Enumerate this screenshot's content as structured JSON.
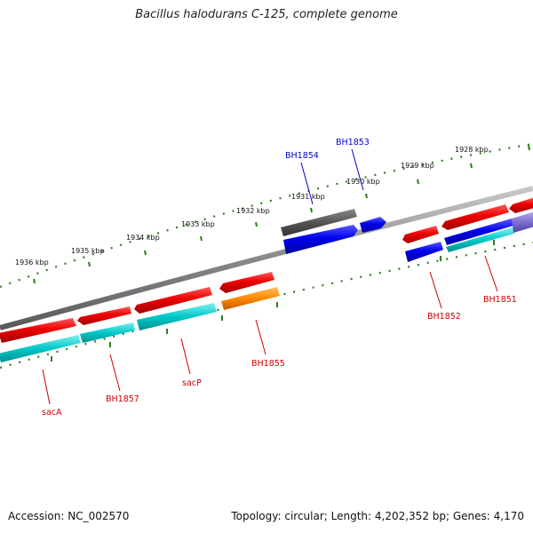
{
  "title": "Bacillus halodurans C-125, complete genome",
  "footer": {
    "accession": "Accession: NC_002570",
    "topology": "Topology: circular; Length: 4,202,352 bp; Genes: 4,170"
  },
  "colors": {
    "background": "#ffffff",
    "backbone": "#8a8a8a",
    "tick": "#2e7d1e",
    "label_red": "#cc0000",
    "label_blue": "#0000cc",
    "cds_red": "#ee0000",
    "cds_blue": "#0000ee",
    "cds_cyan": "#00c8c8",
    "cds_orange": "#ff8800",
    "cds_gray": "#555555",
    "cds_purple": "#7f6fd0"
  },
  "ticks": [
    "1936 kbp",
    "1935 kbp",
    "1934 kbp",
    "1933 kbp",
    "1932 kbp",
    "1931 kbp",
    "1930 kbp",
    "1929 kbp",
    "1928 kbp"
  ],
  "genes": [
    {
      "label": "sacA",
      "color": "#cc0000"
    },
    {
      "label": "BH1857",
      "color": "#cc0000"
    },
    {
      "label": "sacP",
      "color": "#cc0000"
    },
    {
      "label": "BH1855",
      "color": "#cc0000"
    },
    {
      "label": "BH1854",
      "color": "#0000cc"
    },
    {
      "label": "BH1853",
      "color": "#0000cc"
    },
    {
      "label": "BH1852",
      "color": "#cc0000"
    },
    {
      "label": "BH1851",
      "color": "#cc0000"
    }
  ]
}
